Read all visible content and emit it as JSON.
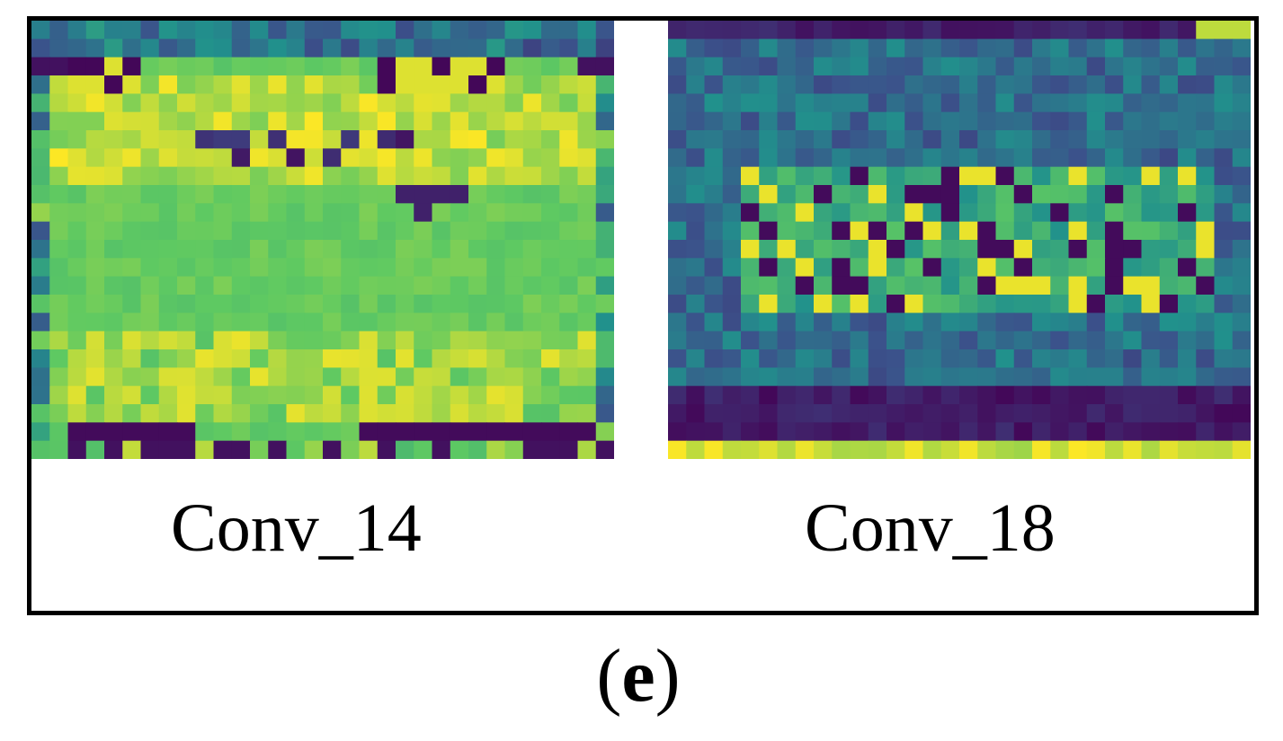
{
  "panels": [
    {
      "caption": "Conv_14",
      "colormap": "viridis"
    },
    {
      "caption": "Conv_18",
      "colormap": "viridis"
    }
  ],
  "figure_label": {
    "open": "(",
    "letter": "e",
    "close": ")"
  },
  "colors": {
    "frame": "#000000",
    "background": "#ffffff",
    "viridis_dark": "#440154",
    "viridis_blue": "#3b528b",
    "viridis_teal": "#21918c",
    "viridis_green": "#5ec962",
    "viridis_yellow": "#fde725"
  }
}
